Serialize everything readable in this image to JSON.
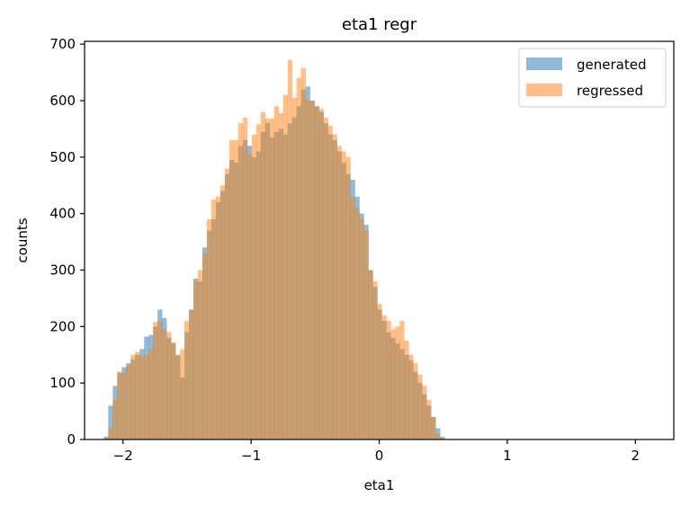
{
  "chart_data": {
    "type": "bar",
    "title": "eta1 regr",
    "xlabel": "eta1",
    "ylabel": "counts",
    "xlim": [
      -2.3,
      2.3
    ],
    "ylim": [
      0,
      705
    ],
    "xticks": [
      -2,
      -1,
      0,
      1,
      2
    ],
    "xtick_labels": [
      "−2",
      "−1",
      "0",
      "1",
      "2"
    ],
    "yticks": [
      0,
      100,
      200,
      300,
      400,
      500,
      600,
      700
    ],
    "ytick_labels": [
      "0",
      "100",
      "200",
      "300",
      "400",
      "500",
      "600",
      "700"
    ],
    "grid": false,
    "legend_position": "top-right",
    "colors": {
      "generated": "#1f77b4",
      "regressed": "#ff7f0e",
      "generated_alpha": 0.5,
      "regressed_alpha": 0.5
    },
    "series": [
      {
        "name": "generated",
        "x_start": -2.15,
        "bin_width": 0.035,
        "values": [
          5,
          60,
          95,
          118,
          128,
          135,
          142,
          150,
          160,
          182,
          185,
          200,
          230,
          215,
          180,
          170,
          150,
          110,
          190,
          230,
          285,
          280,
          340,
          370,
          390,
          420,
          440,
          470,
          495,
          490,
          520,
          530,
          520,
          500,
          510,
          545,
          560,
          535,
          545,
          550,
          540,
          560,
          570,
          590,
          620,
          625,
          600,
          590,
          580,
          560,
          540,
          530,
          510,
          490,
          470,
          460,
          430,
          400,
          380,
          300,
          270,
          230,
          210,
          190,
          180,
          170,
          160,
          150,
          140,
          120,
          100,
          80,
          60,
          40,
          20,
          5
        ]
      },
      {
        "name": "regressed",
        "x_start": -2.15,
        "bin_width": 0.035,
        "values": [
          3,
          20,
          70,
          120,
          118,
          132,
          150,
          155,
          148,
          150,
          160,
          208,
          210,
          195,
          190,
          172,
          148,
          160,
          210,
          230,
          280,
          300,
          330,
          390,
          425,
          430,
          450,
          480,
          530,
          530,
          560,
          570,
          505,
          540,
          558,
          580,
          568,
          568,
          590,
          578,
          610,
          672,
          605,
          640,
          658,
          602,
          600,
          590,
          585,
          570,
          556,
          540,
          520,
          510,
          500,
          430,
          410,
          390,
          370,
          300,
          280,
          240,
          220,
          210,
          195,
          200,
          210,
          175,
          150,
          135,
          115,
          95,
          70,
          40,
          10,
          2
        ]
      }
    ]
  }
}
